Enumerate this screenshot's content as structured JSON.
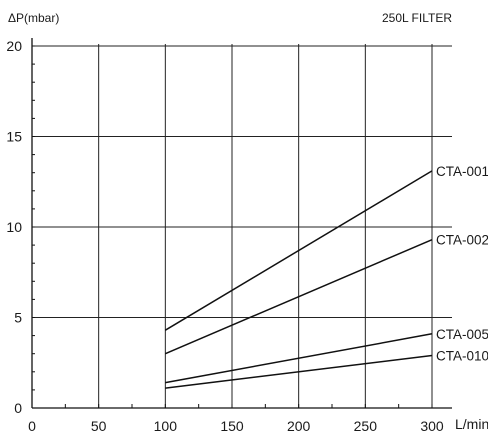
{
  "chart_data": {
    "type": "line",
    "title": "250L FILTER",
    "ylabel": "ΔP(mbar)",
    "xlabel": "L/min",
    "xlim": [
      0,
      300
    ],
    "ylim": [
      0,
      20
    ],
    "x_ticks": [
      "0",
      "50",
      "100",
      "150",
      "200",
      "250",
      "300"
    ],
    "y_ticks": [
      "0",
      "5",
      "10",
      "15",
      "20"
    ],
    "grid": true,
    "series": [
      {
        "name": "CTA-001",
        "x": [
          100,
          300
        ],
        "y": [
          4.3,
          13.1
        ]
      },
      {
        "name": "CTA-002",
        "x": [
          100,
          300
        ],
        "y": [
          3.0,
          9.3
        ]
      },
      {
        "name": "CTA-005",
        "x": [
          100,
          300
        ],
        "y": [
          1.4,
          4.1
        ]
      },
      {
        "name": "CTA-010",
        "x": [
          100,
          300
        ],
        "y": [
          1.1,
          2.9
        ]
      }
    ]
  }
}
